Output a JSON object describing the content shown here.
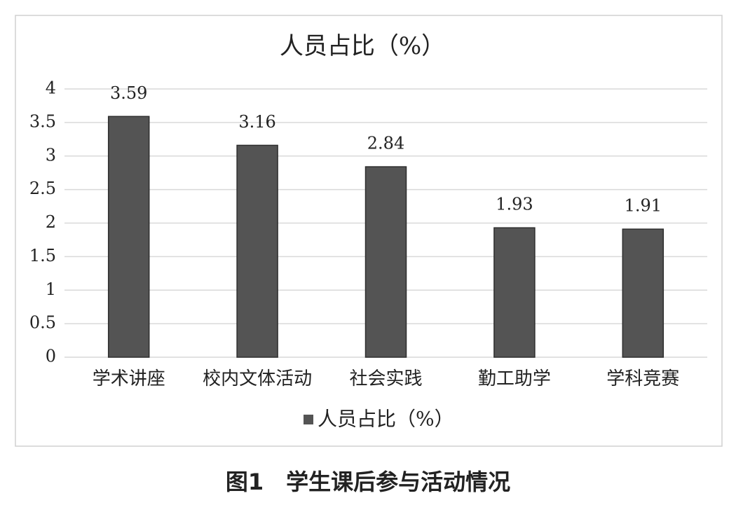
{
  "chart_data": {
    "type": "bar",
    "title": "人员占比（%）",
    "categories": [
      "学术讲座",
      "校内文体活动",
      "社会实践",
      "勤工助学",
      "学科竞赛"
    ],
    "series": [
      {
        "name": "人员占比（%）",
        "color": "#545454",
        "values": [
          3.59,
          3.16,
          2.84,
          1.93,
          1.91
        ]
      }
    ],
    "ylim": [
      0,
      4
    ],
    "yticks": [
      0,
      0.5,
      1,
      1.5,
      2,
      2.5,
      3,
      3.5,
      4
    ],
    "grid": true,
    "legend": "bottom"
  },
  "caption": "图1　学生课后参与活动情况"
}
